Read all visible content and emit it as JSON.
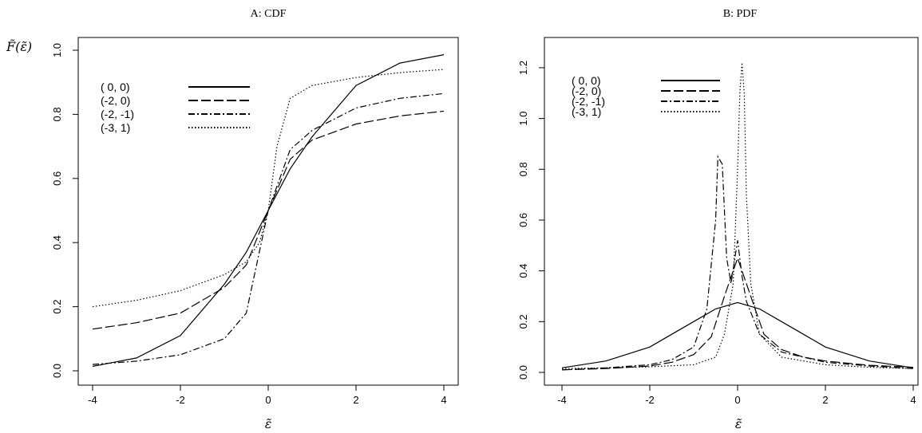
{
  "chart_data": [
    {
      "type": "line",
      "title": "A: CDF",
      "xlabel": "ε̃",
      "ylabel": "F̃(ε̃)",
      "xlim": [
        -4,
        4
      ],
      "ylim": [
        0,
        1
      ],
      "xticks": [
        "-4",
        "-2",
        "0",
        "2",
        "4"
      ],
      "yticks": [
        "0.0",
        "0.2",
        "0.4",
        "0.6",
        "0.8",
        "1.0"
      ],
      "grid": false,
      "legend_position": "top-left",
      "series": [
        {
          "name": "( 0, 0)",
          "style": "solid",
          "x": [
            -4,
            -3,
            -2,
            -1,
            -0.5,
            0,
            0.5,
            1,
            2,
            3,
            4
          ],
          "y": [
            0.014,
            0.04,
            0.11,
            0.27,
            0.37,
            0.5,
            0.63,
            0.73,
            0.89,
            0.96,
            0.986
          ]
        },
        {
          "name": "(-2, 0)",
          "style": "dashed",
          "x": [
            -4,
            -3,
            -2,
            -1,
            -0.5,
            0,
            0.5,
            1,
            2,
            3,
            4
          ],
          "y": [
            0.13,
            0.15,
            0.18,
            0.26,
            0.33,
            0.5,
            0.66,
            0.72,
            0.77,
            0.795,
            0.81
          ]
        },
        {
          "name": "(-2, -1)",
          "style": "dashdot",
          "x": [
            -4,
            -3,
            -2,
            -1,
            -0.5,
            0,
            0.5,
            1,
            2,
            3,
            4
          ],
          "y": [
            0.02,
            0.03,
            0.05,
            0.1,
            0.18,
            0.5,
            0.69,
            0.75,
            0.82,
            0.85,
            0.865
          ]
        },
        {
          "name": "(-3, 1)",
          "style": "dotted",
          "x": [
            -4,
            -3,
            -2,
            -1,
            -0.5,
            -0.2,
            0,
            0.2,
            0.5,
            1,
            2,
            3,
            4
          ],
          "y": [
            0.2,
            0.22,
            0.25,
            0.3,
            0.34,
            0.4,
            0.5,
            0.7,
            0.85,
            0.89,
            0.915,
            0.93,
            0.94
          ]
        }
      ]
    },
    {
      "type": "line",
      "title": "B: PDF",
      "xlabel": "ε̃",
      "ylabel": "",
      "xlim": [
        -4,
        4
      ],
      "ylim": [
        0,
        1.25
      ],
      "xticks": [
        "-4",
        "-2",
        "0",
        "2",
        "4"
      ],
      "yticks": [
        "0.0",
        "0.2",
        "0.4",
        "0.6",
        "0.8",
        "1.0",
        "1.2"
      ],
      "grid": false,
      "legend_position": "top-left",
      "series": [
        {
          "name": "( 0, 0)",
          "style": "solid",
          "x": [
            -4,
            -3,
            -2,
            -1.5,
            -1,
            -0.5,
            0,
            0.5,
            1,
            1.5,
            2,
            3,
            4
          ],
          "y": [
            0.018,
            0.045,
            0.1,
            0.15,
            0.2,
            0.25,
            0.275,
            0.25,
            0.2,
            0.15,
            0.1,
            0.045,
            0.018
          ]
        },
        {
          "name": "(-2, 0)",
          "style": "dashed",
          "x": [
            -4,
            -3,
            -2,
            -1.5,
            -1,
            -0.6,
            -0.3,
            0,
            0.3,
            0.6,
            1,
            1.5,
            2,
            3,
            4
          ],
          "y": [
            0.01,
            0.015,
            0.025,
            0.04,
            0.07,
            0.14,
            0.3,
            0.45,
            0.3,
            0.15,
            0.09,
            0.06,
            0.045,
            0.028,
            0.02
          ]
        },
        {
          "name": "(-2, -1)",
          "style": "dashdot",
          "x": [
            -4,
            -3,
            -2,
            -1.5,
            -1,
            -0.7,
            -0.5,
            -0.45,
            -0.35,
            -0.25,
            -0.15,
            0,
            0.1,
            0.2,
            0.5,
            1,
            2,
            3,
            4
          ],
          "y": [
            0.01,
            0.018,
            0.03,
            0.05,
            0.1,
            0.25,
            0.6,
            0.85,
            0.82,
            0.45,
            0.35,
            0.52,
            0.38,
            0.28,
            0.15,
            0.08,
            0.04,
            0.025,
            0.015
          ]
        },
        {
          "name": "(-3, 1)",
          "style": "dotted",
          "x": [
            -4,
            -3,
            -2,
            -1,
            -0.5,
            -0.3,
            -0.1,
            0,
            0.05,
            0.1,
            0.15,
            0.2,
            0.3,
            0.5,
            1,
            2,
            3,
            4
          ],
          "y": [
            0.015,
            0.018,
            0.022,
            0.03,
            0.06,
            0.15,
            0.35,
            0.8,
            1.1,
            1.22,
            1.1,
            0.7,
            0.35,
            0.15,
            0.06,
            0.03,
            0.02,
            0.015
          ]
        }
      ]
    }
  ]
}
